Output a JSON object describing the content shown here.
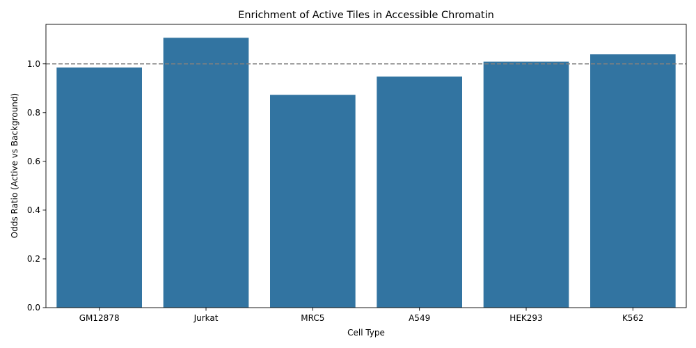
{
  "chart_data": {
    "type": "bar",
    "title": "Enrichment of Active Tiles in Accessible Chromatin",
    "xlabel": "Cell Type",
    "ylabel": "Odds Ratio (Active vs Background)",
    "categories": [
      "GM12878",
      "Jurkat",
      "MRC5",
      "A549",
      "HEK293",
      "K562"
    ],
    "values": [
      0.985,
      1.107,
      0.873,
      0.948,
      1.009,
      1.039
    ],
    "ylim": [
      0,
      1.162
    ],
    "yticks": [
      0.0,
      0.2,
      0.4,
      0.6,
      0.8,
      1.0
    ],
    "ytick_labels": [
      "0.0",
      "0.2",
      "0.4",
      "0.6",
      "0.8",
      "1.0"
    ],
    "reference_line": {
      "y": 1.0,
      "style": "dashed",
      "color": "#808080"
    },
    "bar_color": "#3274a1",
    "grid": false,
    "legend": "none"
  }
}
